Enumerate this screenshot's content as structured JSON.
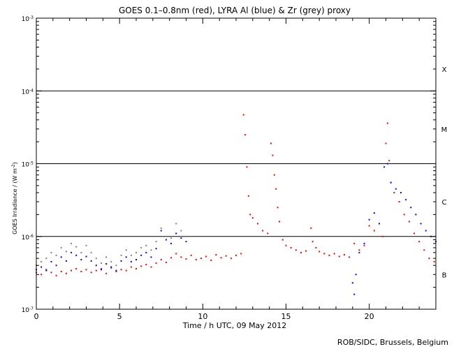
{
  "chart_data": {
    "type": "scatter",
    "title": "GOES 0.1–0.8nm (red), LYRA Al (blue) & Zr (grey) proxy",
    "xlabel": "Time / h UTC, 09 May 2012",
    "ylabel_main": "GOES Irradiance / (W m",
    "ylabel_exp": "-2",
    "ylabel_close": ")",
    "xlim": [
      0,
      24
    ],
    "ylim": [
      1e-07,
      0.001
    ],
    "yscale": "log",
    "x_ticks": [
      0,
      5,
      10,
      15,
      20
    ],
    "x_tick_labels": [
      "0",
      "5",
      "10",
      "15",
      "20"
    ],
    "y_ticks": [
      1e-07,
      1e-06,
      1e-05,
      0.0001,
      0.001
    ],
    "y_tick_labels": [
      {
        "base": "10",
        "exp": "-7"
      },
      {
        "base": "10",
        "exp": "-6"
      },
      {
        "base": "10",
        "exp": "-5"
      },
      {
        "base": "10",
        "exp": "-4"
      },
      {
        "base": "10",
        "exp": "-3"
      }
    ],
    "flare_thresholds": [
      1e-06,
      1e-05,
      0.0001
    ],
    "flare_classes": [
      {
        "label": "X",
        "y": 0.0002
      },
      {
        "label": "M",
        "y": 3e-05
      },
      {
        "label": "C",
        "y": 3e-06
      },
      {
        "label": "B",
        "y": 3e-07
      }
    ],
    "series": [
      {
        "color": "#ff0000",
        "x": [
          0.0,
          0.3,
          0.6,
          0.9,
          1.2,
          1.5,
          1.8,
          2.1,
          2.4,
          2.7,
          3.0,
          3.3,
          3.6,
          3.9,
          4.2,
          4.5,
          4.8,
          5.1,
          5.4,
          5.7,
          6.0,
          6.3,
          6.6,
          6.9,
          7.2,
          7.5,
          7.8,
          8.1,
          8.4,
          8.7,
          9.0,
          9.3,
          9.6,
          9.9,
          10.2,
          10.5,
          10.8,
          11.1,
          11.4,
          11.7,
          12.0,
          12.3,
          12.45,
          12.55,
          12.65,
          12.75,
          12.85,
          13.0,
          13.3,
          13.6,
          13.9,
          14.1,
          14.2,
          14.3,
          14.4,
          14.5,
          14.6,
          14.8,
          15.0,
          15.3,
          15.6,
          15.9,
          16.2,
          16.5,
          16.6,
          16.8,
          17.0,
          17.3,
          17.6,
          17.9,
          18.2,
          18.5,
          18.8,
          19.1,
          19.4,
          19.7,
          20.0,
          20.3,
          20.6,
          20.8,
          21.0,
          21.1,
          21.2,
          21.3,
          21.5,
          21.8,
          22.1,
          22.4,
          22.7,
          23.0,
          23.3,
          23.6,
          23.9
        ],
        "y": [
          3.2e-07,
          3e-07,
          3.5e-07,
          3.2e-07,
          2.9e-07,
          3.3e-07,
          3.1e-07,
          3.4e-07,
          3.6e-07,
          3.3e-07,
          3.5e-07,
          3.2e-07,
          3.4e-07,
          3.6e-07,
          3.1e-07,
          3.7e-07,
          3.3e-07,
          3.5e-07,
          3.4e-07,
          3.8e-07,
          3.6e-07,
          3.9e-07,
          4.1e-07,
          3.8e-07,
          4.3e-07,
          4.8e-07,
          4.4e-07,
          5.1e-07,
          5.8e-07,
          5.2e-07,
          4.9e-07,
          5.5e-07,
          4.8e-07,
          5e-07,
          5.3e-07,
          4.7e-07,
          5.6e-07,
          5.1e-07,
          5.4e-07,
          5e-07,
          5.5e-07,
          5.8e-07,
          4.7e-05,
          2.5e-05,
          9e-06,
          3.6e-06,
          2e-06,
          1.8e-06,
          1.5e-06,
          1.2e-06,
          1.1e-06,
          1.9e-05,
          1.3e-05,
          7e-06,
          4.5e-06,
          2.5e-06,
          1.6e-06,
          9e-07,
          7.5e-07,
          7e-07,
          6.5e-07,
          6e-07,
          6.3e-07,
          1.3e-06,
          8.5e-07,
          7e-07,
          6.2e-07,
          5.8e-07,
          5.5e-07,
          5.8e-07,
          5.3e-07,
          5.6e-07,
          5.2e-07,
          8e-07,
          6.5e-07,
          7.5e-07,
          1.4e-06,
          1.2e-06,
          1.5e-06,
          1e-06,
          1.9e-05,
          3.6e-05,
          1.1e-05,
          5.5e-06,
          4e-06,
          3e-06,
          2e-06,
          1.6e-06,
          1.1e-06,
          8.5e-07,
          6.5e-07,
          5e-07,
          4.5e-07
        ]
      },
      {
        "color": "#0000ff",
        "x": [
          0.0,
          0.3,
          0.6,
          0.9,
          1.2,
          1.5,
          1.8,
          2.1,
          2.4,
          2.7,
          3.0,
          3.3,
          3.6,
          3.9,
          4.2,
          4.5,
          4.8,
          5.1,
          5.4,
          5.7,
          6.0,
          6.3,
          6.6,
          6.9,
          7.2,
          7.5,
          7.8,
          8.1,
          8.4,
          8.7,
          9.0,
          19.0,
          19.1,
          19.2,
          19.4,
          19.7,
          20.0,
          20.3,
          20.6,
          20.9,
          21.1,
          21.3,
          21.6,
          21.9,
          22.2,
          22.5,
          22.8,
          23.1,
          23.4,
          23.7,
          24.0
        ],
        "y": [
          3.5e-07,
          3.8e-07,
          3.4e-07,
          4.5e-07,
          4e-07,
          5.2e-07,
          4.6e-07,
          6e-07,
          5.5e-07,
          4.8e-07,
          5.3e-07,
          4.6e-07,
          4e-07,
          3.5e-07,
          4.2e-07,
          3.8e-07,
          3.4e-07,
          4.6e-07,
          5.2e-07,
          4.5e-07,
          4.8e-07,
          5.5e-07,
          6e-07,
          5.2e-07,
          6.8e-07,
          1.2e-06,
          9e-07,
          8e-07,
          1.1e-06,
          9.5e-07,
          8.5e-07,
          2.3e-07,
          1.6e-07,
          3e-07,
          6e-07,
          8e-07,
          1.7e-06,
          2.1e-06,
          1.5e-06,
          9e-06,
          1e-05,
          5.5e-06,
          4.5e-06,
          4e-06,
          3.2e-06,
          2.5e-06,
          2e-06,
          1.5e-06,
          1.2e-06,
          1e-06,
          8.5e-07
        ]
      },
      {
        "color": "#808080",
        "x": [
          0.0,
          0.3,
          0.6,
          0.9,
          1.2,
          1.5,
          1.8,
          2.1,
          2.4,
          2.7,
          3.0,
          3.3,
          3.6,
          3.9,
          4.2,
          4.5,
          4.8,
          5.1,
          5.4,
          5.7,
          6.0,
          6.3,
          6.6,
          6.9,
          7.2,
          7.5,
          7.8,
          8.1,
          8.4,
          8.7,
          9.0
        ],
        "y": [
          4e-07,
          4.5e-07,
          5e-07,
          6e-07,
          5.5e-07,
          7e-07,
          6.2e-07,
          8e-07,
          7.2e-07,
          6e-07,
          7.5e-07,
          6e-07,
          5e-07,
          4.3e-07,
          5.2e-07,
          4.5e-07,
          4e-07,
          5.5e-07,
          6.5e-07,
          5.5e-07,
          6e-07,
          7e-07,
          7.5e-07,
          6.5e-07,
          8.5e-07,
          1.3e-06,
          1e-06,
          9.5e-07,
          1.5e-06,
          1.2e-06,
          1e-06
        ]
      }
    ]
  },
  "footer": {
    "credit": "ROB/SIDC, Brussels, Belgium"
  }
}
